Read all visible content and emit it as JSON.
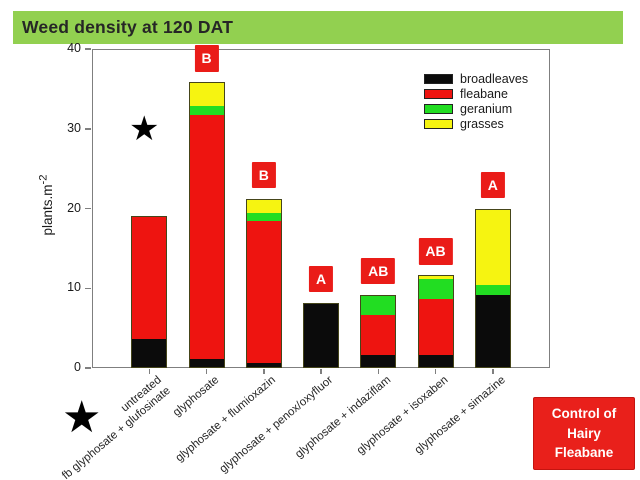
{
  "title_bar": {
    "text": "Weed density at 120 DAT",
    "bg_color": "#92d050",
    "text_color": "#262626"
  },
  "axis": {
    "ylabel_base": "plants.m",
    "ylabel_sup": "-2"
  },
  "chart_data": {
    "type": "bar",
    "stacked": true,
    "title": "Weed density at 120 DAT",
    "ylabel": "plants.m-2",
    "xlabel": "",
    "ylim": [
      0,
      40
    ],
    "yticks": [
      0,
      10,
      20,
      30,
      40
    ],
    "grid": false,
    "legend_position": "upper-right-inside",
    "categories": [
      "untreated\nfb glyphosate + glufosinate",
      "glyphosate",
      "glyphosate + flumioxazin",
      "glyphosate + penox/oxyfluor",
      "glyphosate + indaziflam",
      "glyphosate + isoxaben",
      "glyphosate + simazine"
    ],
    "series": [
      {
        "name": "broadleaves",
        "color": "#0b0b0b",
        "values": [
          3.5,
          1.0,
          0.5,
          8.2,
          1.5,
          1.5,
          9.2
        ]
      },
      {
        "name": "fleabane",
        "color": "#ee1410",
        "values": [
          15.5,
          30.8,
          18.0,
          0,
          5.2,
          7.2,
          0
        ]
      },
      {
        "name": "geranium",
        "color": "#22dd22",
        "values": [
          0,
          1.2,
          1.0,
          0,
          2.5,
          2.6,
          1.2
        ]
      },
      {
        "name": "grasses",
        "color": "#f6f411",
        "values": [
          0,
          2.8,
          1.7,
          0,
          0,
          0.3,
          9.6
        ]
      }
    ],
    "totals": [
      19.0,
      35.8,
      21.2,
      8.2,
      9.2,
      11.6,
      20.0
    ],
    "letter_labels": [
      "",
      "B",
      "B",
      "A",
      "AB",
      "AB",
      "A"
    ],
    "letter_label_bg": "#ea1c18"
  },
  "annotations": [
    {
      "type": "star-in-plot",
      "glyph": "★",
      "category_index": 0,
      "y_value": 30
    },
    {
      "type": "star-at-axis-label",
      "glyph": "★",
      "target": "untreated fb glyphosate + glufosinate"
    }
  ],
  "badge": {
    "lines": [
      "Control of",
      "Hairy",
      "Fleabane"
    ],
    "bg_color": "#e9201b",
    "text_color": "#ffffff"
  }
}
